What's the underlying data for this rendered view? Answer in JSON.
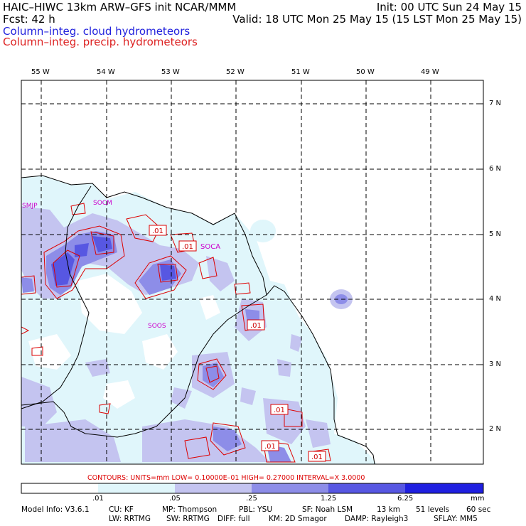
{
  "header": {
    "title_left": "HAIC–HIWC 13km ARW–GFS init   NCAR/MMM",
    "init": "Init: 00 UTC Sun 24 May 15",
    "fcst": "Fcst:   42 h",
    "valid": "Valid: 18 UTC Mon 25 May 15 (15 LST Mon 25 May 15)",
    "field1": "Column–integ. cloud hydrometeors",
    "field2": "Column–integ. precip. hydrometeors"
  },
  "colors": {
    "cloud_field": "#2222dd",
    "precip_field": "#dd2222",
    "shade_1": "#e0f6fb",
    "shade_2": "#c4c4f0",
    "shade_3": "#8d8de8",
    "shade_4": "#5757e2",
    "shade_5": "#1f1fe0"
  },
  "map": {
    "lon_labels": [
      "55 W",
      "54 W",
      "53 W",
      "52 W",
      "51 W",
      "50 W",
      "49 W"
    ],
    "lat_labels": [
      "7 N",
      "6 N",
      "5 N",
      "4 N",
      "3 N",
      "2 N"
    ],
    "stations": [
      "SMJP",
      "SOCM",
      "SOCA",
      "SOOS"
    ],
    "contour_labels": [
      ".01",
      ".01",
      ".01",
      ".01",
      ".01",
      ".01"
    ]
  },
  "contours_info": "CONTOURS:  UNITS=mm  LOW= 0.10000E–01  HIGH= 0.27000     INTERVAL=X  3.0000",
  "colorbar": {
    "ticks": [
      ".01",
      ".05",
      ".25",
      "1.25",
      "6.25"
    ],
    "units": "mm"
  },
  "model_info": {
    "line1": [
      "Model Info: V3.6.1",
      "CU: KF",
      "MP: Thompson",
      "PBL: YSU",
      "SF: Noah LSM",
      "13 km",
      "51 levels",
      "60 sec"
    ],
    "line2": [
      "LW: RRTMG",
      "SW: RRTMG",
      "DIFF: full",
      "KM: 2D Smagor",
      "DAMP: Rayleigh3",
      "SFLAY: MM5"
    ]
  }
}
